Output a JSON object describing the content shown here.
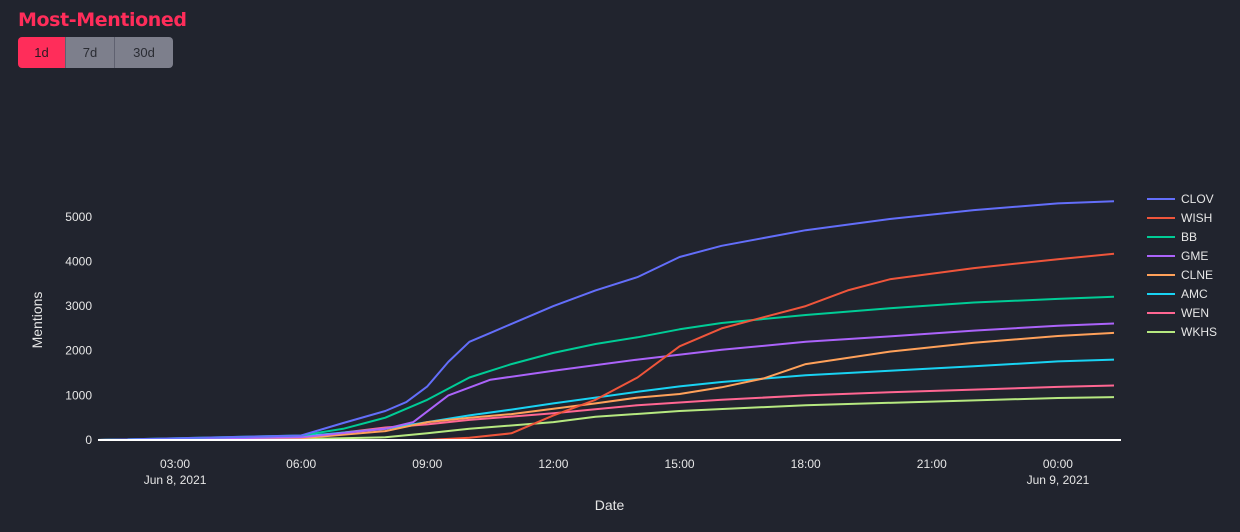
{
  "header": {
    "title": "Most-Mentioned",
    "ranges": [
      {
        "label": "1d",
        "active": true
      },
      {
        "label": "7d",
        "active": false
      },
      {
        "label": "30d",
        "active": false
      }
    ]
  },
  "colors": {
    "background": "#21242e",
    "title": "#ff2d5a",
    "active_button": "#ff2d5a",
    "inactive_button": "#7d7f8c"
  },
  "chart_data": {
    "type": "line",
    "xlabel": "Date",
    "ylabel": "Mentions",
    "ylim": [
      0,
      5600
    ],
    "xlim": [
      "2021-06-08 01:10",
      "2021-06-09 01:30"
    ],
    "grid": false,
    "legend_placement": "right",
    "x_ticks": [
      {
        "value": "2021-06-08 03:00",
        "label": "03:00",
        "sublabel": "Jun 8, 2021"
      },
      {
        "value": "2021-06-08 06:00",
        "label": "06:00",
        "sublabel": ""
      },
      {
        "value": "2021-06-08 09:00",
        "label": "09:00",
        "sublabel": ""
      },
      {
        "value": "2021-06-08 12:00",
        "label": "12:00",
        "sublabel": ""
      },
      {
        "value": "2021-06-08 15:00",
        "label": "15:00",
        "sublabel": ""
      },
      {
        "value": "2021-06-08 18:00",
        "label": "18:00",
        "sublabel": ""
      },
      {
        "value": "2021-06-08 21:00",
        "label": "21:00",
        "sublabel": ""
      },
      {
        "value": "2021-06-09 00:00",
        "label": "00:00",
        "sublabel": "Jun 9, 2021"
      }
    ],
    "y_ticks": [
      0,
      1000,
      2000,
      3000,
      4000,
      5000
    ],
    "y_tick_labels": [
      "0",
      "1000",
      "2000",
      "3000",
      "4000",
      "5000"
    ],
    "series": [
      {
        "name": "CLOV",
        "color": "#636efa",
        "points": [
          [
            "2021-06-08 01:10",
            0
          ],
          [
            "2021-06-08 06:00",
            100
          ],
          [
            "2021-06-08 07:00",
            380
          ],
          [
            "2021-06-08 08:00",
            650
          ],
          [
            "2021-06-08 08:30",
            850
          ],
          [
            "2021-06-08 09:00",
            1200
          ],
          [
            "2021-06-08 09:30",
            1750
          ],
          [
            "2021-06-08 10:00",
            2200
          ],
          [
            "2021-06-08 10:30",
            2400
          ],
          [
            "2021-06-08 11:00",
            2600
          ],
          [
            "2021-06-08 12:00",
            3000
          ],
          [
            "2021-06-08 13:00",
            3350
          ],
          [
            "2021-06-08 14:00",
            3650
          ],
          [
            "2021-06-08 15:00",
            4100
          ],
          [
            "2021-06-08 16:00",
            4350
          ],
          [
            "2021-06-08 18:00",
            4700
          ],
          [
            "2021-06-08 20:00",
            4950
          ],
          [
            "2021-06-08 22:00",
            5150
          ],
          [
            "2021-06-09 00:00",
            5300
          ],
          [
            "2021-06-09 01:20",
            5350
          ]
        ]
      },
      {
        "name": "WISH",
        "color": "#ef553b",
        "points": [
          [
            "2021-06-08 01:10",
            0
          ],
          [
            "2021-06-08 09:00",
            0
          ],
          [
            "2021-06-08 10:00",
            50
          ],
          [
            "2021-06-08 11:00",
            150
          ],
          [
            "2021-06-08 12:00",
            550
          ],
          [
            "2021-06-08 13:00",
            900
          ],
          [
            "2021-06-08 14:00",
            1400
          ],
          [
            "2021-06-08 15:00",
            2100
          ],
          [
            "2021-06-08 16:00",
            2500
          ],
          [
            "2021-06-08 17:00",
            2750
          ],
          [
            "2021-06-08 18:00",
            3000
          ],
          [
            "2021-06-08 19:00",
            3350
          ],
          [
            "2021-06-08 20:00",
            3600
          ],
          [
            "2021-06-08 22:00",
            3850
          ],
          [
            "2021-06-09 00:00",
            4050
          ],
          [
            "2021-06-09 01:20",
            4170
          ]
        ]
      },
      {
        "name": "BB",
        "color": "#00cc96",
        "points": [
          [
            "2021-06-08 01:10",
            0
          ],
          [
            "2021-06-08 06:00",
            100
          ],
          [
            "2021-06-08 07:00",
            250
          ],
          [
            "2021-06-08 08:00",
            500
          ],
          [
            "2021-06-08 09:00",
            900
          ],
          [
            "2021-06-08 10:00",
            1400
          ],
          [
            "2021-06-08 11:00",
            1700
          ],
          [
            "2021-06-08 12:00",
            1950
          ],
          [
            "2021-06-08 13:00",
            2150
          ],
          [
            "2021-06-08 14:00",
            2300
          ],
          [
            "2021-06-08 15:00",
            2480
          ],
          [
            "2021-06-08 16:00",
            2620
          ],
          [
            "2021-06-08 18:00",
            2800
          ],
          [
            "2021-06-08 20:00",
            2950
          ],
          [
            "2021-06-08 22:00",
            3080
          ],
          [
            "2021-06-09 00:00",
            3160
          ],
          [
            "2021-06-09 01:20",
            3210
          ]
        ]
      },
      {
        "name": "GME",
        "color": "#ab63fa",
        "points": [
          [
            "2021-06-08 01:10",
            0
          ],
          [
            "2021-06-08 06:00",
            60
          ],
          [
            "2021-06-08 08:00",
            250
          ],
          [
            "2021-06-08 08:40",
            400
          ],
          [
            "2021-06-08 09:30",
            1000
          ],
          [
            "2021-06-08 10:30",
            1350
          ],
          [
            "2021-06-08 12:00",
            1550
          ],
          [
            "2021-06-08 14:00",
            1800
          ],
          [
            "2021-06-08 16:00",
            2020
          ],
          [
            "2021-06-08 18:00",
            2200
          ],
          [
            "2021-06-08 20:00",
            2320
          ],
          [
            "2021-06-08 22:00",
            2450
          ],
          [
            "2021-06-09 00:00",
            2560
          ],
          [
            "2021-06-09 01:20",
            2610
          ]
        ]
      },
      {
        "name": "CLNE",
        "color": "#ffa15a",
        "points": [
          [
            "2021-06-08 01:10",
            0
          ],
          [
            "2021-06-08 06:00",
            40
          ],
          [
            "2021-06-08 08:00",
            200
          ],
          [
            "2021-06-08 09:00",
            400
          ],
          [
            "2021-06-08 10:00",
            500
          ],
          [
            "2021-06-08 11:00",
            580
          ],
          [
            "2021-06-08 12:00",
            700
          ],
          [
            "2021-06-08 13:00",
            820
          ],
          [
            "2021-06-08 14:00",
            950
          ],
          [
            "2021-06-08 15:00",
            1030
          ],
          [
            "2021-06-08 16:00",
            1180
          ],
          [
            "2021-06-08 17:00",
            1380
          ],
          [
            "2021-06-08 18:00",
            1700
          ],
          [
            "2021-06-08 20:00",
            1980
          ],
          [
            "2021-06-08 22:00",
            2180
          ],
          [
            "2021-06-09 00:00",
            2330
          ],
          [
            "2021-06-09 01:20",
            2400
          ]
        ]
      },
      {
        "name": "AMC",
        "color": "#19d3f3",
        "points": [
          [
            "2021-06-08 01:10",
            0
          ],
          [
            "2021-06-08 06:00",
            80
          ],
          [
            "2021-06-08 08:00",
            250
          ],
          [
            "2021-06-08 09:00",
            400
          ],
          [
            "2021-06-08 10:00",
            550
          ],
          [
            "2021-06-08 11:00",
            680
          ],
          [
            "2021-06-08 12:00",
            820
          ],
          [
            "2021-06-08 13:00",
            950
          ],
          [
            "2021-06-08 14:00",
            1080
          ],
          [
            "2021-06-08 15:00",
            1200
          ],
          [
            "2021-06-08 16:00",
            1300
          ],
          [
            "2021-06-08 18:00",
            1450
          ],
          [
            "2021-06-08 20:00",
            1550
          ],
          [
            "2021-06-08 22:00",
            1650
          ],
          [
            "2021-06-09 00:00",
            1760
          ],
          [
            "2021-06-09 01:20",
            1800
          ]
        ]
      },
      {
        "name": "WEN",
        "color": "#ff6692",
        "points": [
          [
            "2021-06-08 01:10",
            0
          ],
          [
            "2021-06-08 06:00",
            50
          ],
          [
            "2021-06-08 08:00",
            280
          ],
          [
            "2021-06-08 09:00",
            350
          ],
          [
            "2021-06-08 10:00",
            450
          ],
          [
            "2021-06-08 12:00",
            600
          ],
          [
            "2021-06-08 14:00",
            780
          ],
          [
            "2021-06-08 16:00",
            900
          ],
          [
            "2021-06-08 18:00",
            1000
          ],
          [
            "2021-06-08 20:00",
            1070
          ],
          [
            "2021-06-08 22:00",
            1130
          ],
          [
            "2021-06-09 00:00",
            1190
          ],
          [
            "2021-06-09 01:20",
            1220
          ]
        ]
      },
      {
        "name": "WKHS",
        "color": "#b6e880",
        "points": [
          [
            "2021-06-08 01:10",
            0
          ],
          [
            "2021-06-08 06:00",
            20
          ],
          [
            "2021-06-08 08:00",
            60
          ],
          [
            "2021-06-08 09:00",
            150
          ],
          [
            "2021-06-08 10:00",
            250
          ],
          [
            "2021-06-08 12:00",
            400
          ],
          [
            "2021-06-08 13:00",
            520
          ],
          [
            "2021-06-08 15:00",
            650
          ],
          [
            "2021-06-08 18:00",
            780
          ],
          [
            "2021-06-08 21:00",
            860
          ],
          [
            "2021-06-09 00:00",
            940
          ],
          [
            "2021-06-09 01:20",
            960
          ]
        ]
      }
    ]
  }
}
